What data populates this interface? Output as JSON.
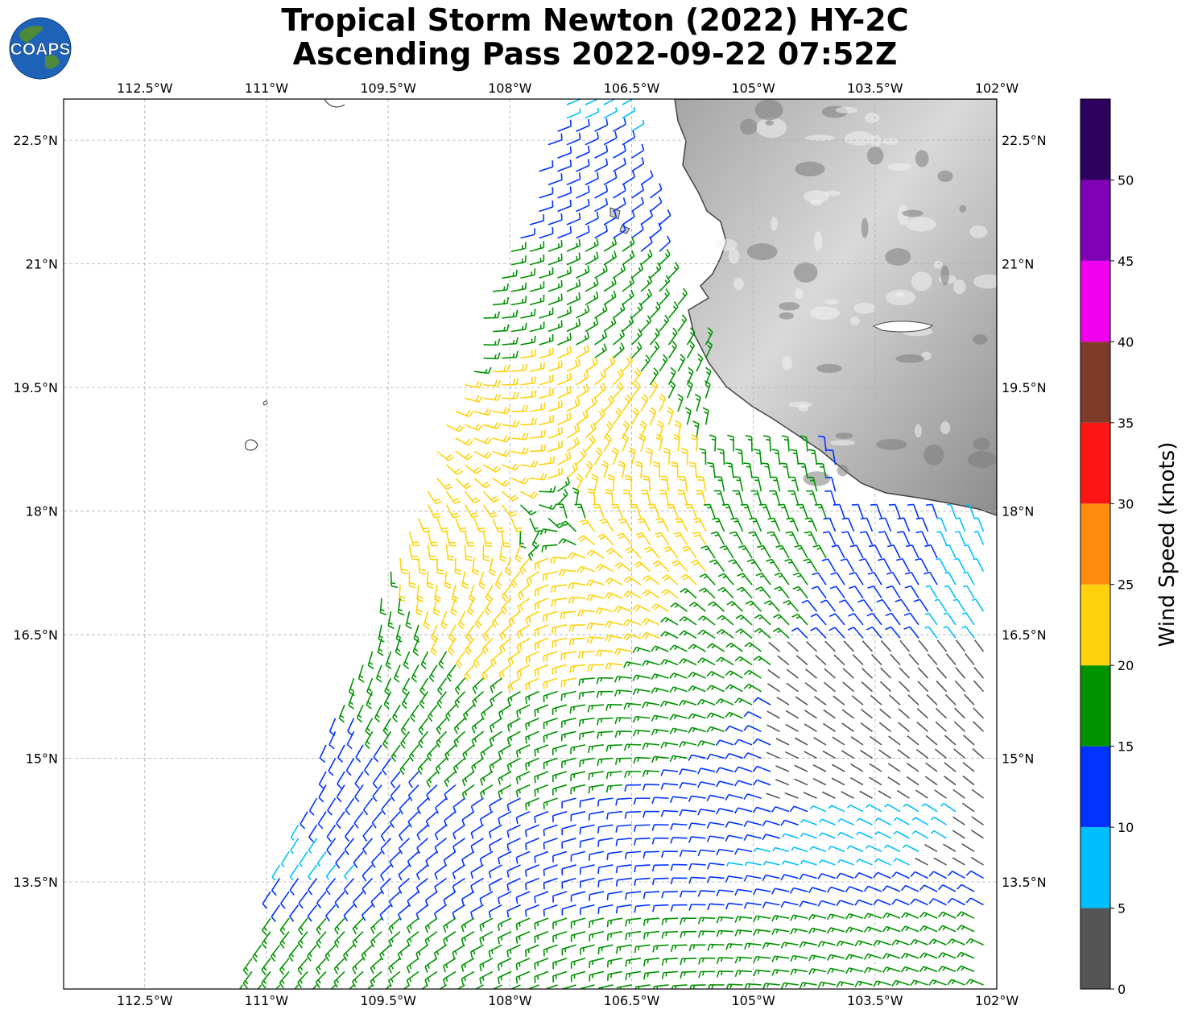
{
  "title": {
    "line1": "Tropical Storm Newton (2022) HY-2C",
    "line2": "Ascending Pass 2022-09-22 07:52Z"
  },
  "logo": {
    "text": "COAPS",
    "icon": "earth-globe-logo"
  },
  "map": {
    "lon_range": [
      -113.5,
      -102.0
    ],
    "lat_range": [
      12.2,
      23.0
    ],
    "lon_ticks": [
      {
        "value": -112.5,
        "label": "112.5°W"
      },
      {
        "value": -111.0,
        "label": "111°W"
      },
      {
        "value": -109.5,
        "label": "109.5°W"
      },
      {
        "value": -108.0,
        "label": "108°W"
      },
      {
        "value": -106.5,
        "label": "106.5°W"
      },
      {
        "value": -105.0,
        "label": "105°W"
      },
      {
        "value": -103.5,
        "label": "103.5°W"
      },
      {
        "value": -102.0,
        "label": "102°W"
      }
    ],
    "lat_ticks": [
      {
        "value": 22.5,
        "label": "22.5°N"
      },
      {
        "value": 21.0,
        "label": "21°N"
      },
      {
        "value": 19.5,
        "label": "19.5°N"
      },
      {
        "value": 18.0,
        "label": "18°N"
      },
      {
        "value": 16.5,
        "label": "16.5°N"
      },
      {
        "value": 15.0,
        "label": "15°N"
      },
      {
        "value": 13.5,
        "label": "13.5°N"
      }
    ],
    "gridlines": true,
    "storm_center": {
      "lon": -107.5,
      "lat": 17.9
    },
    "land_color": "#d8d8d8",
    "coast_color": "#444444"
  },
  "colorbar": {
    "label": "Wind Speed (knots)",
    "bins": [
      {
        "min": 0,
        "max": 5,
        "color": "#555555"
      },
      {
        "min": 5,
        "max": 10,
        "color": "#00bfff"
      },
      {
        "min": 10,
        "max": 15,
        "color": "#0033ff"
      },
      {
        "min": 15,
        "max": 20,
        "color": "#009300"
      },
      {
        "min": 20,
        "max": 25,
        "color": "#ffd20d"
      },
      {
        "min": 25,
        "max": 30,
        "color": "#ff8c0d"
      },
      {
        "min": 30,
        "max": 35,
        "color": "#ff1414"
      },
      {
        "min": 35,
        "max": 40,
        "color": "#7f3b2a"
      },
      {
        "min": 40,
        "max": 45,
        "color": "#f000ef"
      },
      {
        "min": 45,
        "max": 50,
        "color": "#8000b6"
      },
      {
        "min": 50,
        "max": 55,
        "color": "#2e005f"
      }
    ],
    "ticks": [
      {
        "value": 0,
        "label": "0"
      },
      {
        "value": 5,
        "label": "5"
      },
      {
        "value": 10,
        "label": "10"
      },
      {
        "value": 15,
        "label": "15"
      },
      {
        "value": 20,
        "label": "20"
      },
      {
        "value": 25,
        "label": "25"
      },
      {
        "value": 30,
        "label": "30"
      },
      {
        "value": 35,
        "label": "35"
      },
      {
        "value": 40,
        "label": "40"
      },
      {
        "value": 45,
        "label": "45"
      },
      {
        "value": 50,
        "label": "50"
      }
    ]
  }
}
